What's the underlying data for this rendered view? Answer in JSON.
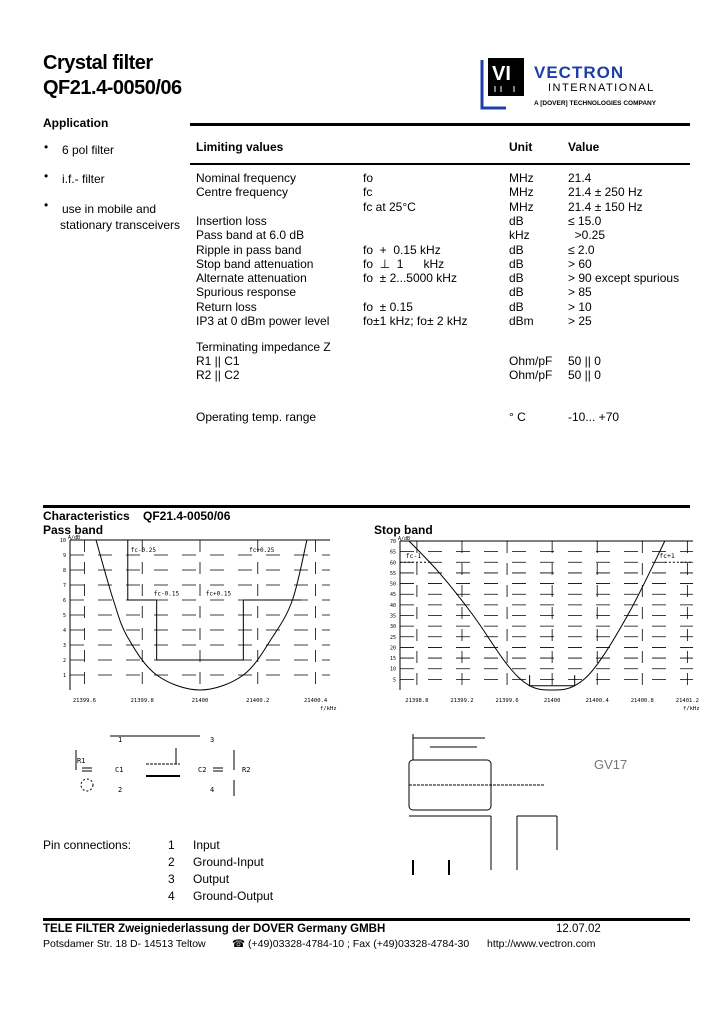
{
  "header": {
    "title_line1": "Crystal filter",
    "title_line2": "QF21.4-0050/06",
    "logo": {
      "mark": "VI",
      "name": "VECTRON",
      "sub": "INTERNATIONAL",
      "tagline": "A DOVER TECHNOLOGIES COMPANY",
      "color": "#1f3fa8"
    }
  },
  "application": {
    "heading": "Application",
    "items": [
      "6   pol filter",
      "i.f.- filter",
      "use in mobile and",
      "stationary transceivers"
    ]
  },
  "limits": {
    "headers": {
      "param": "Limiting values",
      "unit": "Unit",
      "value": "Value"
    },
    "rows": [
      {
        "param": "Nominal frequency",
        "cond": "fo",
        "unit": "MHz",
        "value": "21.4"
      },
      {
        "param": "Centre frequency",
        "cond": "fc",
        "unit": "MHz",
        "value": "21.4 ± 250 Hz"
      },
      {
        "param": "",
        "cond": "fc at 25°C",
        "unit": "MHz",
        "value": "21.4 ± 150 Hz"
      },
      {
        "param": "Insertion loss",
        "cond": "",
        "unit": "dB",
        "value": "≤ 15.0"
      },
      {
        "param": "Pass band at 6.0 dB",
        "cond": "",
        "unit": "kHz",
        "value": "  >0.25"
      },
      {
        "param": "Ripple in pass band",
        "cond": "fo  +  0.15 kHz",
        "unit": "dB",
        "value": "≤ 2.0"
      },
      {
        "param": "Stop band attenuation",
        "cond": "fo  ⊥  1      kHz",
        "unit": "dB",
        "value": "> 60"
      },
      {
        "param": "Alternate attenuation",
        "cond": "fo  ± 2...5000 kHz",
        "unit": "dB",
        "value": "> 90 except spurious"
      },
      {
        "param": "Spurious response",
        "cond": "",
        "unit": "dB",
        "value": "> 85"
      },
      {
        "param": "Return loss",
        "cond": "fo  ± 0.15",
        "unit": "dB",
        "value": "> 10"
      },
      {
        "param": "IP3 at 0 dBm power level",
        "cond": "fo±1 kHz; fo± 2 kHz",
        "unit": "dBm",
        "value": "> 25"
      }
    ],
    "impedance": {
      "heading": "Terminating impedance Z",
      "rows": [
        {
          "param": "R1 || C1",
          "unit": "Ohm/pF",
          "value": "50 ||  0"
        },
        {
          "param": "R2 || C2",
          "unit": "Ohm/pF",
          "value": "50 ||  0"
        }
      ]
    },
    "temp": {
      "param": "Operating temp. range",
      "unit": "° C",
      "value": "-10... +70"
    }
  },
  "characteristics": {
    "heading": "Characteristics",
    "model": "QF21.4-0050/06"
  },
  "chart_data": [
    {
      "type": "line",
      "title": "Pass band",
      "ylabel": "A/dB",
      "xlabel": "f/kHz",
      "x_ticks": [
        "21399.6",
        "21399.8",
        "21400",
        "21400.2",
        "21400.4"
      ],
      "y_ticks": [
        "10",
        "9",
        "8",
        "7",
        "6",
        "5",
        "4",
        "3",
        "2",
        "1"
      ],
      "xlim": [
        21399.55,
        21400.45
      ],
      "ylim": [
        0,
        10
      ],
      "grid": true,
      "annotations": [
        "fc-0.25",
        "fc+0.25",
        "fc-0.15",
        "fc+0.15"
      ],
      "x": [
        21399.64,
        21399.7,
        21399.75,
        21399.85,
        21400.0,
        21400.15,
        21400.25,
        21400.32,
        21400.37
      ],
      "y": [
        10,
        6,
        3.5,
        1,
        0,
        1,
        3.5,
        6,
        10
      ]
    },
    {
      "type": "line",
      "title": "Stop band",
      "ylabel": "A/dB",
      "xlabel": "f/kHz",
      "x_ticks": [
        "21398.8",
        "21399.2",
        "21399.6",
        "21400",
        "21400.4",
        "21400.8",
        "21401.2"
      ],
      "y_ticks": [
        "70",
        "65",
        "60",
        "55",
        "50",
        "45",
        "40",
        "35",
        "30",
        "25",
        "20",
        "15",
        "10",
        "5"
      ],
      "xlim": [
        21398.65,
        21401.25
      ],
      "ylim": [
        0,
        70
      ],
      "grid": true,
      "annotations": [
        "fc-1",
        "fc+1"
      ],
      "x": [
        21398.73,
        21399.0,
        21399.3,
        21399.6,
        21399.8,
        21400.0,
        21400.2,
        21400.4,
        21400.7,
        21401.0
      ],
      "y": [
        70,
        55,
        35,
        12,
        2,
        0,
        2,
        12,
        38,
        70
      ]
    }
  ],
  "circuit": {
    "labels": [
      "R1",
      "C1",
      "C2",
      "R2",
      "1",
      "2",
      "3",
      "4"
    ]
  },
  "package": {
    "name": "GV17"
  },
  "pins": {
    "heading": "Pin connections:",
    "items": [
      {
        "num": "1",
        "name": "Input"
      },
      {
        "num": "2",
        "name": "Ground-Input"
      },
      {
        "num": "3",
        "name": "Output"
      },
      {
        "num": "4",
        "name": "Ground-Output"
      }
    ]
  },
  "footer": {
    "company": "TELE FILTER Zweigniederlassung der DOVER Germany GMBH",
    "date": "12.07.02",
    "address": "Potsdamer Str. 18   D- 14513  Teltow",
    "contact": "☎ (+49)03328-4784-10 ; Fax (+49)03328-4784-30",
    "web": "http://www.vectron.com"
  }
}
